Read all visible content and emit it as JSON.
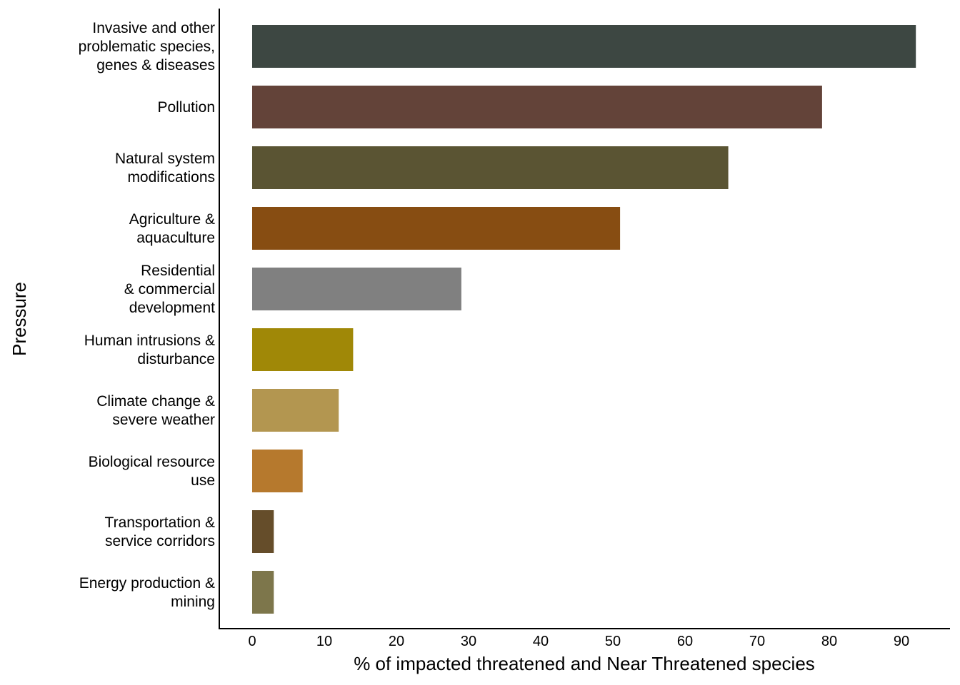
{
  "chart_data": {
    "type": "bar",
    "orientation": "horizontal",
    "title": "",
    "xlabel": "% of impacted threatened and Near Threatened species",
    "ylabel": "Pressure",
    "xlim": [
      0,
      97
    ],
    "xticks": [
      0,
      10,
      20,
      30,
      40,
      50,
      60,
      70,
      80,
      90
    ],
    "grid": false,
    "legend": "none",
    "categories": [
      [
        "Invasive and other",
        "problematic species,",
        "genes & diseases"
      ],
      [
        "Pollution"
      ],
      [
        "Natural system",
        "modifications"
      ],
      [
        "Agriculture &",
        "aquaculture"
      ],
      [
        "Residential",
        "& commercial",
        "development"
      ],
      [
        "Human intrusions &",
        "disturbance"
      ],
      [
        "Climate change &",
        "severe weather"
      ],
      [
        "Biological resource",
        "use"
      ],
      [
        "Transportation &",
        "service corridors"
      ],
      [
        "Energy production &",
        "mining"
      ]
    ],
    "values": [
      92,
      79,
      66,
      51,
      29,
      14,
      12,
      7,
      3,
      3
    ],
    "colors": [
      "#3d4742",
      "#634339",
      "#5a5433",
      "#874d12",
      "#808080",
      "#a08807",
      "#b39650",
      "#b6792d",
      "#654d2a",
      "#7d764b"
    ]
  }
}
